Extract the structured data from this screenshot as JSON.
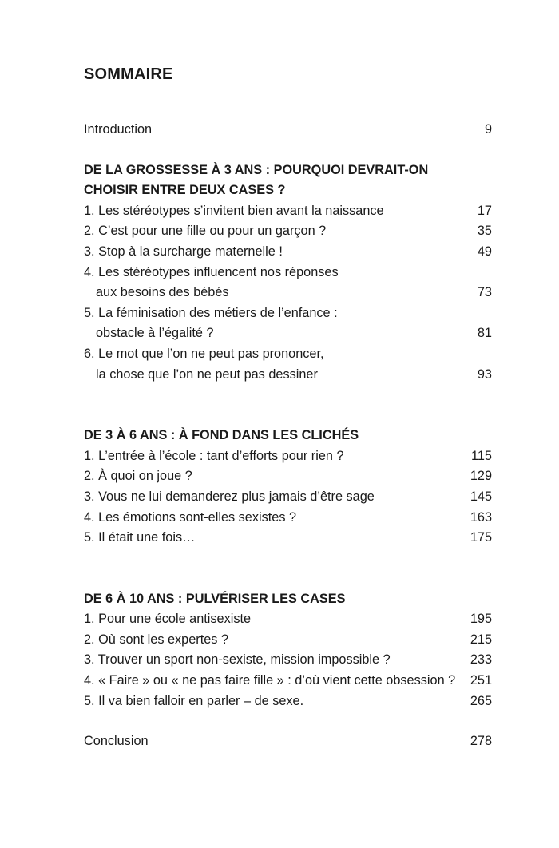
{
  "title": "SOMMAIRE",
  "introduction": {
    "label": "Introduction",
    "page": "9"
  },
  "parts": [
    {
      "heading": [
        "DE LA GROSSESSE À 3 ANS : POURQUOI DEVRAIT-ON",
        "CHOISIR ENTRE DEUX CASES ?"
      ],
      "chapters": [
        {
          "lines": [
            "1. Les stéréotypes s’invitent bien avant la naissance"
          ],
          "page": "17"
        },
        {
          "lines": [
            "2. C’est pour une fille ou pour un garçon ?"
          ],
          "page": "35"
        },
        {
          "lines": [
            "3. Stop à la surcharge maternelle !"
          ],
          "page": "49"
        },
        {
          "lines": [
            "4. Les stéréotypes influencent nos réponses",
            "aux besoins des bébés"
          ],
          "page": "73"
        },
        {
          "lines": [
            "5. La féminisation des métiers de l’enfance :",
            "obstacle à l’égalité ?"
          ],
          "page": "81"
        },
        {
          "lines": [
            "6. Le mot que l’on ne peut pas prononcer,",
            "la chose que l’on ne peut pas dessiner"
          ],
          "page": "93"
        }
      ]
    },
    {
      "heading": [
        "DE 3 À 6 ANS : À FOND DANS LES CLICHÉS"
      ],
      "chapters": [
        {
          "lines": [
            "1. L’entrée à l’école : tant d’efforts pour rien ?"
          ],
          "page": "115"
        },
        {
          "lines": [
            "2. À quoi on joue ?"
          ],
          "page": "129"
        },
        {
          "lines": [
            "3. Vous ne lui demanderez plus jamais d’être sage"
          ],
          "page": "145"
        },
        {
          "lines": [
            "4. Les émotions sont-elles sexistes ?"
          ],
          "page": "163"
        },
        {
          "lines": [
            "5. Il était une fois…"
          ],
          "page": "175"
        }
      ]
    },
    {
      "heading": [
        "DE 6 À 10 ANS : PULVÉRISER LES CASES"
      ],
      "chapters": [
        {
          "lines": [
            "1. Pour une école antisexiste"
          ],
          "page": "195"
        },
        {
          "lines": [
            "2. Où sont les expertes ?"
          ],
          "page": "215"
        },
        {
          "lines": [
            "3. Trouver un sport non-sexiste, mission impossible ?"
          ],
          "page": "233"
        },
        {
          "lines": [
            "4. « Faire » ou « ne pas faire fille » : d’où vient cette obsession ?"
          ],
          "page": "251"
        },
        {
          "lines": [
            "5. Il va bien falloir en parler – de sexe."
          ],
          "page": "265"
        }
      ]
    }
  ],
  "conclusion": {
    "label": "Conclusion",
    "page": "278"
  }
}
